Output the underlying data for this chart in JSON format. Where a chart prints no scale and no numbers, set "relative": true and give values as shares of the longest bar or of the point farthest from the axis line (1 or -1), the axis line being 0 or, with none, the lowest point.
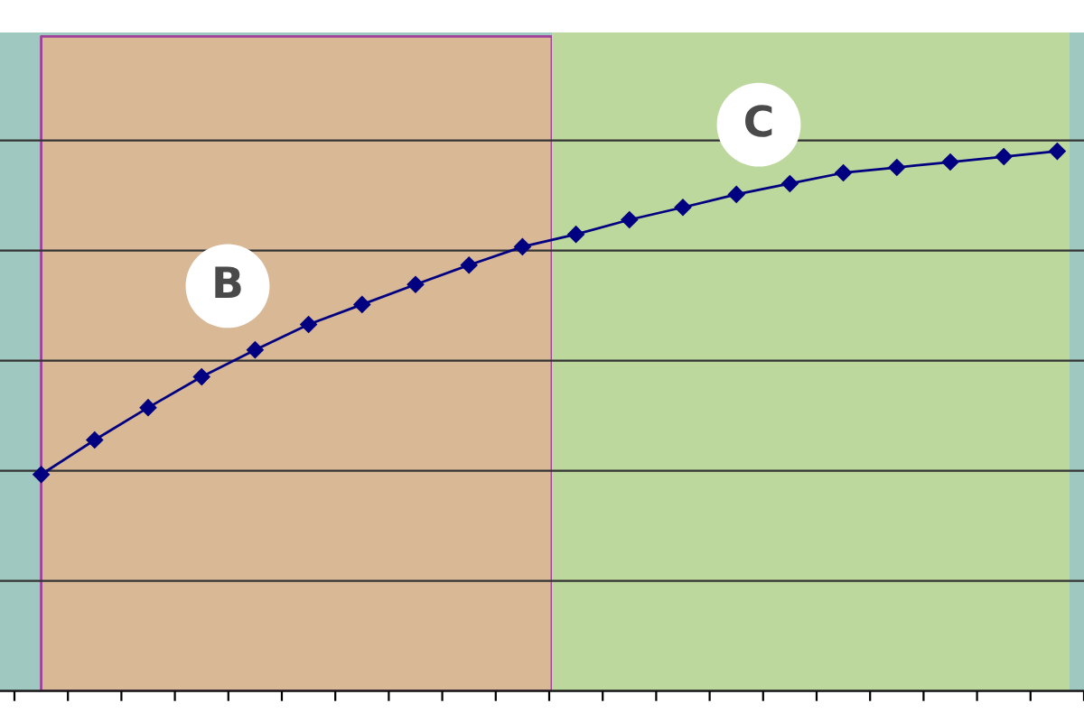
{
  "chart_data": {
    "type": "line",
    "relative": true,
    "marker": "diamond",
    "line_style": "solid",
    "grid": "y",
    "categories": [
      null,
      null,
      null,
      null,
      null,
      null,
      null,
      null,
      null,
      null,
      null,
      null,
      null,
      null,
      null,
      null,
      null,
      null,
      null,
      null
    ],
    "series": [
      {
        "color": "#000080",
        "values": [
          0.401,
          0.465,
          0.525,
          0.582,
          0.632,
          0.679,
          0.716,
          0.753,
          0.789,
          0.823,
          0.846,
          0.873,
          0.896,
          0.92,
          0.94,
          0.96,
          0.97,
          0.98,
          0.99,
          1
        ]
      }
    ],
    "annotations": [
      "B",
      "C"
    ]
  }
}
